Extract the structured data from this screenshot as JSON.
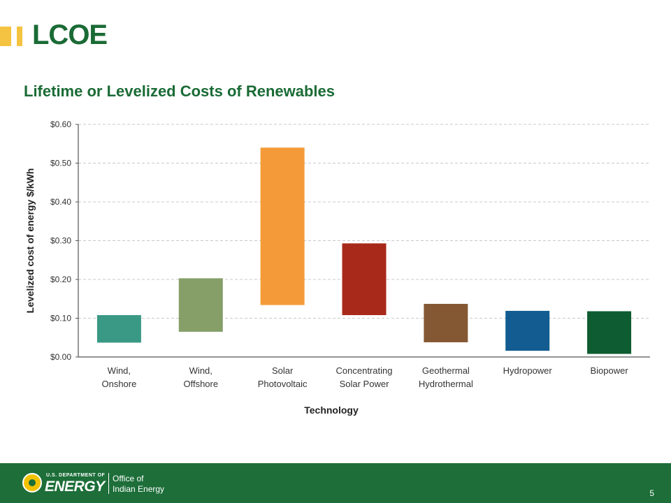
{
  "slide": {
    "title": "LCOE"
  },
  "chart_data": {
    "type": "bar",
    "title": "Lifetime or Levelized Costs of Renewables",
    "xlabel": "Technology",
    "ylabel": "Levelized cost of energy $/kWh",
    "ylim": [
      0,
      0.6
    ],
    "yticks": [
      0,
      0.1,
      0.2,
      0.3,
      0.4,
      0.5,
      0.6
    ],
    "ytick_labels": [
      "$0.00",
      "$0.10",
      "$0.20",
      "$0.30",
      "$0.40",
      "$0.50",
      "$0.60"
    ],
    "grid": true,
    "categories": [
      [
        "Wind,",
        "Onshore"
      ],
      [
        "Wind,",
        "Offshore"
      ],
      [
        "Solar",
        "Photovoltaic"
      ],
      [
        "Concentrating",
        "Solar Power"
      ],
      [
        "Geothermal",
        "Hydrothermal"
      ],
      [
        "Hydropower"
      ],
      [
        "Biopower"
      ]
    ],
    "ranges": [
      [
        0.037,
        0.108
      ],
      [
        0.065,
        0.203
      ],
      [
        0.134,
        0.54
      ],
      [
        0.108,
        0.293
      ],
      [
        0.038,
        0.137
      ],
      [
        0.016,
        0.119
      ],
      [
        0.008,
        0.118
      ]
    ],
    "colors": [
      "#3a9984",
      "#869f69",
      "#f59a38",
      "#a8291a",
      "#845833",
      "#125c91",
      "#0e5c31"
    ]
  },
  "footer": {
    "agency_small": "U.S. DEPARTMENT OF",
    "agency_big": "ENERGY",
    "office_line1": "Office of",
    "office_line2": "Indian Energy",
    "page_number": "5"
  }
}
